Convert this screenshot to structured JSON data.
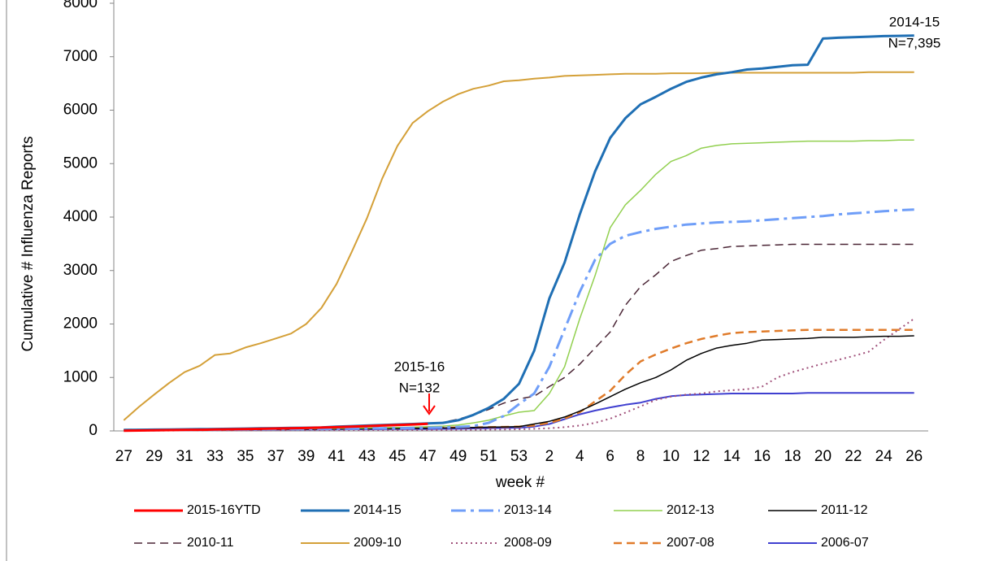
{
  "chart_data": {
    "type": "line",
    "y_label": "Cumulative # Influenza Reports",
    "x_label": "week #",
    "annotations": [
      "2014-15",
      "N=7,395",
      "2015-16",
      "N=132"
    ],
    "categories": [
      "27",
      null,
      "29",
      null,
      "31",
      null,
      "33",
      null,
      "35",
      null,
      "37",
      null,
      "39",
      null,
      "41",
      null,
      "43",
      null,
      "45",
      null,
      "47",
      null,
      "49",
      null,
      "51",
      null,
      "53",
      null,
      "2",
      null,
      "4",
      null,
      "6",
      null,
      "8",
      null,
      "10",
      null,
      "12",
      null,
      "14",
      null,
      "16",
      null,
      "18",
      null,
      "20",
      null,
      "22",
      null,
      "24",
      null,
      "26"
    ],
    "ylim": [
      0,
      8000
    ],
    "yticks": [
      0,
      1000,
      2000,
      3000,
      4000,
      5000,
      6000,
      7000,
      8000
    ],
    "grid": false,
    "series": [
      {
        "name": "2015-16YTD",
        "color": "#ff0000",
        "style": "solid",
        "linewidth": 3,
        "values": [
          5,
          8,
          12,
          15,
          18,
          22,
          26,
          30,
          35,
          40,
          45,
          50,
          55,
          62,
          70,
          80,
          90,
          100,
          110,
          120,
          132,
          null,
          null,
          null,
          null,
          null,
          null,
          null,
          null,
          null,
          null,
          null,
          null,
          null,
          null,
          null,
          null,
          null,
          null,
          null,
          null,
          null,
          null,
          null,
          null,
          null,
          null,
          null,
          null,
          null,
          null,
          null,
          null
        ]
      },
      {
        "name": "2014-15",
        "color": "#1f6fb4",
        "style": "solid",
        "linewidth": 3,
        "values": [
          20,
          22,
          25,
          28,
          30,
          33,
          36,
          40,
          44,
          48,
          52,
          56,
          60,
          65,
          80,
          90,
          100,
          110,
          120,
          130,
          140,
          150,
          200,
          300,
          430,
          600,
          880,
          1500,
          2480,
          3150,
          4050,
          4850,
          5480,
          5850,
          6110,
          6250,
          6400,
          6530,
          6610,
          6670,
          6710,
          6760,
          6780,
          6810,
          6840,
          6850,
          7340,
          7355,
          7365,
          7375,
          7385,
          7390,
          7395
        ]
      },
      {
        "name": "2013-14",
        "color": "#6f9ef8",
        "style": "dash-dot",
        "linewidth": 3,
        "values": [
          10,
          12,
          14,
          16,
          18,
          20,
          22,
          24,
          26,
          28,
          30,
          32,
          35,
          38,
          40,
          42,
          45,
          48,
          50,
          55,
          60,
          65,
          75,
          90,
          150,
          280,
          500,
          700,
          1200,
          1900,
          2600,
          3200,
          3500,
          3650,
          3720,
          3780,
          3820,
          3860,
          3880,
          3900,
          3910,
          3920,
          3940,
          3960,
          3980,
          4000,
          4020,
          4050,
          4070,
          4090,
          4110,
          4130,
          4140
        ]
      },
      {
        "name": "2012-13",
        "color": "#92d050",
        "style": "solid",
        "linewidth": 1.5,
        "values": [
          15,
          17,
          19,
          21,
          23,
          25,
          27,
          29,
          31,
          33,
          35,
          38,
          41,
          44,
          47,
          50,
          55,
          60,
          65,
          70,
          80,
          90,
          110,
          150,
          200,
          280,
          350,
          380,
          700,
          1200,
          2100,
          2900,
          3800,
          4230,
          4500,
          4800,
          5040,
          5150,
          5290,
          5340,
          5370,
          5380,
          5390,
          5400,
          5410,
          5420,
          5420,
          5420,
          5420,
          5430,
          5430,
          5440,
          5440
        ]
      },
      {
        "name": "2011-12",
        "color": "#000000",
        "style": "solid",
        "linewidth": 1.5,
        "values": [
          10,
          12,
          14,
          16,
          18,
          20,
          22,
          24,
          26,
          28,
          30,
          32,
          34,
          36,
          38,
          40,
          42,
          44,
          46,
          48,
          50,
          55,
          60,
          65,
          70,
          75,
          80,
          130,
          180,
          260,
          370,
          500,
          640,
          780,
          900,
          1000,
          1140,
          1320,
          1450,
          1550,
          1600,
          1640,
          1700,
          1710,
          1720,
          1730,
          1750,
          1750,
          1750,
          1760,
          1770,
          1770,
          1780
        ]
      },
      {
        "name": "2010-11",
        "color": "#4a2535",
        "style": "dashed",
        "linewidth": 1.5,
        "values": [
          20,
          22,
          25,
          28,
          30,
          33,
          36,
          40,
          45,
          50,
          55,
          60,
          65,
          70,
          75,
          80,
          90,
          100,
          110,
          120,
          130,
          160,
          220,
          300,
          400,
          520,
          600,
          650,
          830,
          1000,
          1250,
          1550,
          1850,
          2350,
          2700,
          2920,
          3170,
          3280,
          3380,
          3410,
          3450,
          3460,
          3470,
          3480,
          3490,
          3490,
          3490,
          3490,
          3490,
          3490,
          3490,
          3490,
          3490
        ]
      },
      {
        "name": "2009-10",
        "color": "#d4a038",
        "style": "solid",
        "linewidth": 2,
        "values": [
          200,
          450,
          680,
          900,
          1100,
          1220,
          1420,
          1450,
          1560,
          1640,
          1730,
          1820,
          2000,
          2300,
          2750,
          3350,
          3980,
          4720,
          5330,
          5760,
          5980,
          6160,
          6300,
          6400,
          6460,
          6540,
          6560,
          6590,
          6610,
          6640,
          6650,
          6660,
          6670,
          6680,
          6680,
          6680,
          6690,
          6690,
          6690,
          6700,
          6700,
          6700,
          6700,
          6700,
          6700,
          6700,
          6700,
          6700,
          6700,
          6710,
          6710,
          6710,
          6710
        ]
      },
      {
        "name": "2008-09",
        "color": "#a0507a",
        "style": "dotted",
        "linewidth": 2,
        "values": [
          5,
          5,
          6,
          6,
          7,
          7,
          8,
          8,
          9,
          9,
          10,
          10,
          11,
          11,
          12,
          12,
          13,
          14,
          15,
          16,
          17,
          18,
          20,
          22,
          25,
          28,
          30,
          40,
          50,
          70,
          100,
          150,
          230,
          340,
          460,
          580,
          640,
          680,
          700,
          740,
          760,
          780,
          830,
          1000,
          1100,
          1180,
          1260,
          1330,
          1400,
          1480,
          1700,
          1900,
          2100
        ]
      },
      {
        "name": "2007-08",
        "color": "#e07b2a",
        "style": "dashed",
        "linewidth": 2.5,
        "values": [
          20,
          22,
          24,
          26,
          28,
          30,
          32,
          34,
          36,
          38,
          40,
          42,
          44,
          46,
          48,
          50,
          52,
          54,
          56,
          58,
          60,
          62,
          64,
          66,
          70,
          75,
          80,
          100,
          150,
          230,
          350,
          550,
          750,
          1050,
          1300,
          1430,
          1540,
          1640,
          1720,
          1780,
          1830,
          1850,
          1860,
          1870,
          1880,
          1890,
          1890,
          1890,
          1890,
          1890,
          1890,
          1890,
          1890
        ]
      },
      {
        "name": "2006-07",
        "color": "#4040d0",
        "style": "solid",
        "linewidth": 2,
        "values": [
          15,
          16,
          17,
          18,
          19,
          20,
          21,
          22,
          23,
          24,
          25,
          26,
          27,
          28,
          29,
          30,
          31,
          32,
          33,
          34,
          35,
          38,
          40,
          45,
          50,
          55,
          60,
          80,
          130,
          220,
          310,
          380,
          440,
          490,
          530,
          600,
          650,
          670,
          680,
          690,
          700,
          700,
          700,
          700,
          700,
          710,
          710,
          710,
          710,
          710,
          710,
          710,
          710
        ]
      }
    ]
  }
}
